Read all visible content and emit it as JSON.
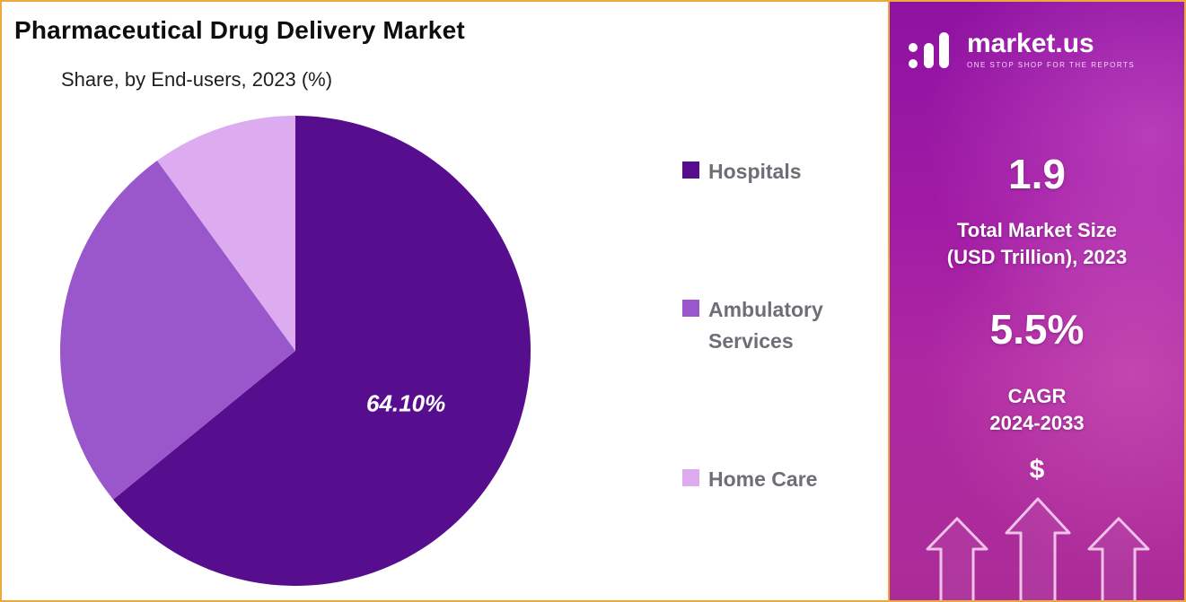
{
  "chart_data": {
    "type": "pie",
    "title": "Pharmaceutical Drug Delivery Market",
    "subtitle": "Share, by End-users, 2023 (%)",
    "legend_position": "right",
    "start_angle_deg": 0,
    "direction": "clockwise",
    "slices": [
      {
        "label": "Hospitals",
        "value": 64.1,
        "color": "#570e8e",
        "data_label": "64.10%"
      },
      {
        "label": "Ambulatory Services",
        "value": 25.9,
        "color": "#9a57cb",
        "data_label": ""
      },
      {
        "label": "Home Care",
        "value": 10.0,
        "color": "#dcabf0",
        "data_label": ""
      }
    ]
  },
  "sidebar": {
    "logo": {
      "brand": "market.us",
      "tagline": "ONE STOP SHOP FOR THE REPORTS"
    },
    "stats": [
      {
        "value": "1.9",
        "label_line1": "Total Market Size",
        "label_line2": "(USD Trillion), 2023"
      },
      {
        "value": "5.5%",
        "label_line1": "CAGR",
        "label_line2": "2024-2033"
      }
    ],
    "dollar_symbol": "$"
  },
  "colors": {
    "border_accent": "#edaa3c",
    "sidebar_gradient_top": "#8e12a2",
    "sidebar_gradient_bottom": "#ab2c98",
    "legend_text": "#6e6e76"
  }
}
